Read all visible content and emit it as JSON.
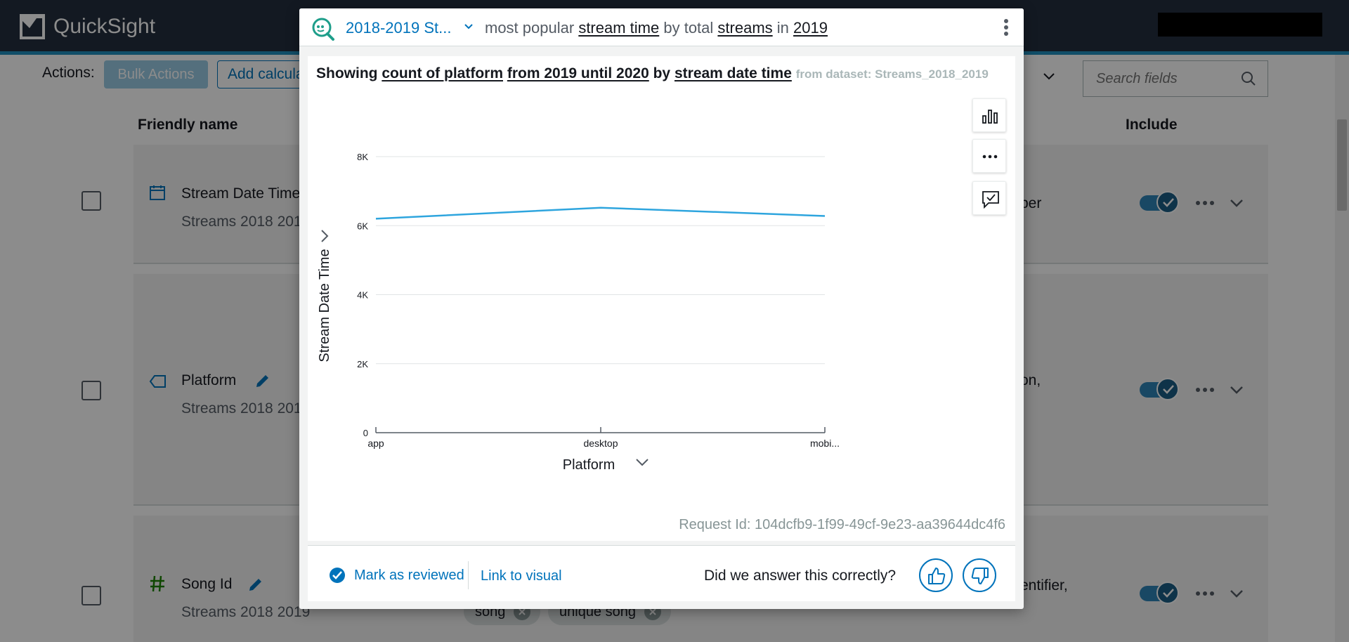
{
  "app": {
    "name": "QuickSight"
  },
  "toolbar": {
    "actions_label": "Actions:",
    "bulk_actions_label": "Bulk Actions",
    "add_calc_label": "Add calcula",
    "search_placeholder": "Search fields"
  },
  "table": {
    "col_friendly_name": "Friendly name",
    "col_include": "Include",
    "rows": [
      {
        "name": "Stream Date Time",
        "dataset": "Streams 2018 201",
        "desc": "ber",
        "type_icon": "calendar-icon"
      },
      {
        "name": "Platform",
        "dataset": "Streams 2018 201",
        "desc": "on,",
        "type_icon": "tag-icon"
      },
      {
        "name": "Song Id",
        "dataset": "Streams 2018 2019",
        "desc": "entifier,",
        "type_icon": "hash-icon",
        "synonyms": [
          "song",
          "unique song"
        ]
      }
    ]
  },
  "q_panel": {
    "topic_name": "2018-2019 St...",
    "question": {
      "p1": "most popular",
      "stream_time": "stream time",
      "p2": "by total",
      "streams": "streams",
      "p3": "in",
      "year": "2019"
    },
    "showing": {
      "prefix": "Showing",
      "measure": "count of platform",
      "range": "from 2019 until 2020",
      "by": "by",
      "dimension": "stream date time",
      "dataset": "from dataset: Streams_2018_2019"
    },
    "request_id": "Request Id: 104dcfb9-1f99-49cf-9e23-aa39644dc4f6",
    "footer": {
      "mark_reviewed": "Mark as reviewed",
      "link_to_visual": "Link to visual",
      "did_we_answer": "Did we answer this correctly?"
    }
  },
  "chart_data": {
    "type": "line",
    "categories": [
      "app",
      "desktop",
      "mobi..."
    ],
    "series": [
      {
        "values": [
          6200,
          6520,
          6280
        ]
      }
    ],
    "y_ticks": [
      "0",
      "2K",
      "4K",
      "6K",
      "8K"
    ],
    "ylim": [
      0,
      8000
    ],
    "xlabel": "Platform",
    "ylabel": "Stream Date Time",
    "line_color": "#2ea5de",
    "grid": true
  }
}
